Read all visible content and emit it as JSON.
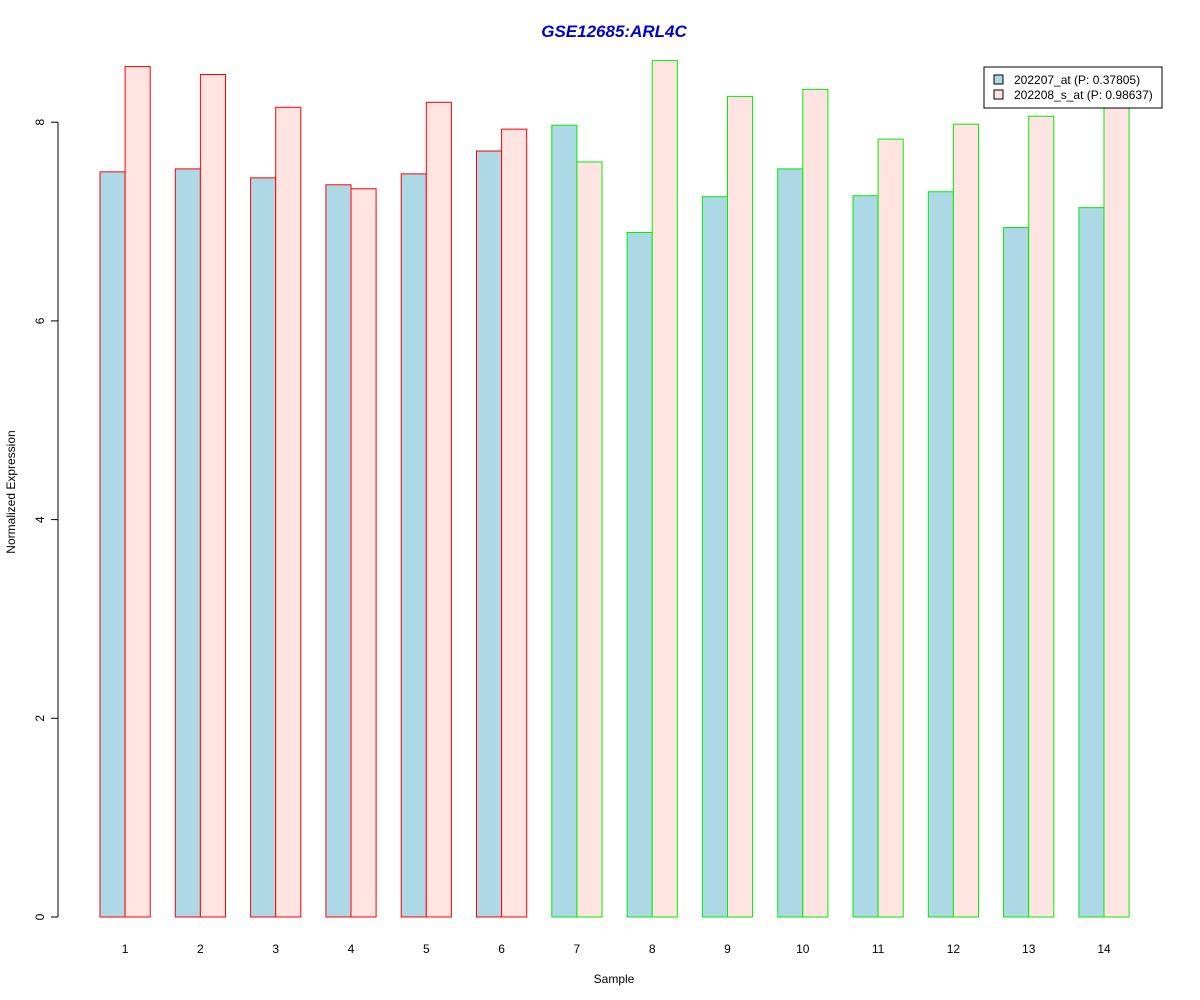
{
  "chart_data": {
    "type": "bar",
    "title": "GSE12685:ARL4C",
    "xlabel": "Sample",
    "ylabel": "Normalized Expression",
    "categories": [
      "1",
      "2",
      "3",
      "4",
      "5",
      "6",
      "7",
      "8",
      "9",
      "10",
      "11",
      "12",
      "13",
      "14"
    ],
    "yticks": [
      "0",
      "2",
      "4",
      "6",
      "8"
    ],
    "ylim": [
      0,
      8.65
    ],
    "grid": false,
    "legend_position": "top-right",
    "series": [
      {
        "name": "202207_at (P: 0.37805)",
        "fill": "#add8e6",
        "values": [
          7.5,
          7.53,
          7.44,
          7.37,
          7.48,
          7.71,
          7.97,
          6.89,
          7.25,
          7.53,
          7.26,
          7.3,
          6.94,
          7.14
        ]
      },
      {
        "name": "202208_s_at (P: 0.98637)",
        "fill": "#ffe4e1",
        "values": [
          8.56,
          8.48,
          8.15,
          7.33,
          8.2,
          7.93,
          7.6,
          8.62,
          8.26,
          8.33,
          7.83,
          7.98,
          8.06,
          8.18
        ]
      }
    ],
    "group_outline_colors": [
      "#ff0000",
      "#ff0000",
      "#ff0000",
      "#ff0000",
      "#ff0000",
      "#ff0000",
      "#00ee00",
      "#00ee00",
      "#00ee00",
      "#00ee00",
      "#00ee00",
      "#00ee00",
      "#00ee00",
      "#00ee00"
    ],
    "title_color": "#0000cc"
  }
}
